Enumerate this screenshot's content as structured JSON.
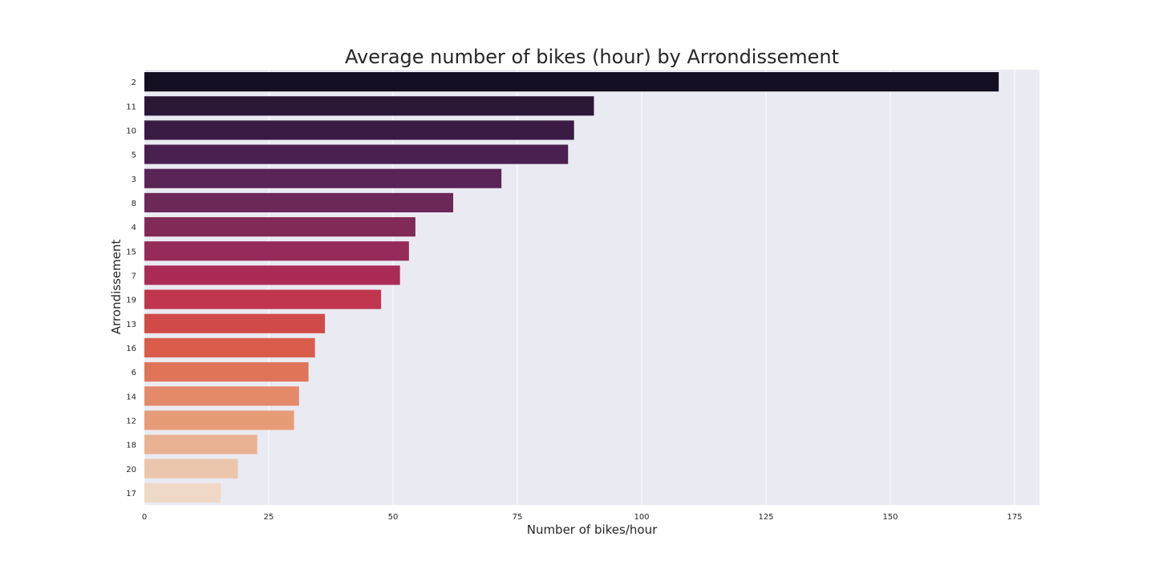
{
  "chart_data": {
    "type": "bar",
    "orientation": "horizontal",
    "title": "Average number of bikes (hour) by Arrondissement",
    "xlabel": "Number of bikes/hour",
    "ylabel": "Arrondissement",
    "xlim": [
      0,
      180
    ],
    "xticks": [
      0,
      25,
      50,
      75,
      100,
      125,
      150,
      175
    ],
    "grid": true,
    "categories": [
      "2",
      "11",
      "10",
      "5",
      "3",
      "8",
      "4",
      "15",
      "7",
      "19",
      "13",
      "16",
      "6",
      "14",
      "12",
      "18",
      "20",
      "17"
    ],
    "values": [
      171.8,
      90.4,
      86.4,
      85.2,
      71.8,
      62.1,
      54.5,
      53.2,
      51.4,
      47.6,
      36.3,
      34.3,
      33.0,
      31.1,
      30.1,
      22.7,
      18.8,
      15.4
    ],
    "colors": [
      "#150f23",
      "#2b1736",
      "#3a1b44",
      "#4a2050",
      "#5b2457",
      "#6c2859",
      "#812a57",
      "#962a58",
      "#ab2b57",
      "#c0364f",
      "#d04b48",
      "#da5d4b",
      "#e07459",
      "#e48a6a",
      "#e79c78",
      "#e9b293",
      "#ecc6ac",
      "#efd9c6"
    ],
    "plot_background": "#eaeaf2",
    "grid_color": "#ffffff"
  }
}
